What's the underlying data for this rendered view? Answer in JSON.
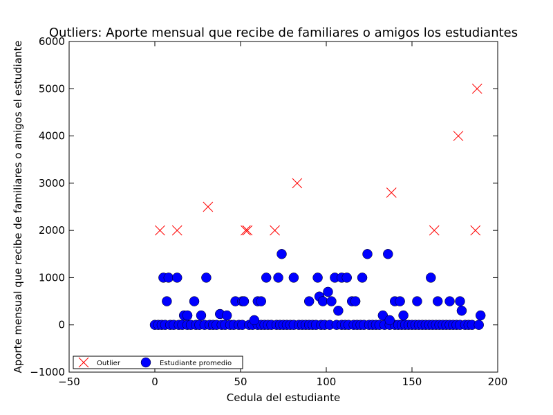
{
  "chart_data": {
    "type": "scatter",
    "title": "Outliers: Aporte mensual que recibe de familiares o amigos los estudiantes",
    "xlabel": "Cedula del estudiante",
    "ylabel": "Aporte mensual que recibe de familiares o amigos el estudiante",
    "xlim": [
      -50,
      200
    ],
    "ylim": [
      -1000,
      6000
    ],
    "xticks": [
      "−50",
      "0",
      "50",
      "100",
      "150",
      "200"
    ],
    "yticks": [
      "−1000",
      "0",
      "1000",
      "2000",
      "3000",
      "4000",
      "5000",
      "6000"
    ],
    "xtick_values": [
      -50,
      0,
      50,
      100,
      150,
      200
    ],
    "ytick_values": [
      -1000,
      0,
      1000,
      2000,
      3000,
      4000,
      5000,
      6000
    ],
    "legend_position": "lower-left",
    "series": [
      {
        "name": "Outlier",
        "marker": "x",
        "color": "#ff0000",
        "points": [
          [
            3,
            2000
          ],
          [
            13,
            2000
          ],
          [
            31,
            2500
          ],
          [
            53,
            2000
          ],
          [
            54,
            2000
          ],
          [
            70,
            2000
          ],
          [
            83,
            3000
          ],
          [
            138,
            2800
          ],
          [
            163,
            2000
          ],
          [
            177,
            4000
          ],
          [
            187,
            2000
          ],
          [
            188,
            5000
          ]
        ]
      },
      {
        "name": "Estudiante promedio",
        "marker": "o",
        "color": "#0000ff",
        "points": [
          [
            0,
            0
          ],
          [
            2,
            0
          ],
          [
            4,
            0
          ],
          [
            6,
            0
          ],
          [
            9,
            0
          ],
          [
            11,
            0
          ],
          [
            14,
            0
          ],
          [
            16,
            0
          ],
          [
            19,
            0
          ],
          [
            21,
            0
          ],
          [
            24,
            0
          ],
          [
            26,
            0
          ],
          [
            29,
            0
          ],
          [
            32,
            0
          ],
          [
            34,
            0
          ],
          [
            36,
            0
          ],
          [
            39,
            0
          ],
          [
            41,
            0
          ],
          [
            44,
            0
          ],
          [
            46,
            0
          ],
          [
            49,
            0
          ],
          [
            51,
            0
          ],
          [
            55,
            0
          ],
          [
            57,
            0
          ],
          [
            60,
            0
          ],
          [
            62,
            0
          ],
          [
            64,
            0
          ],
          [
            66,
            0
          ],
          [
            68,
            0
          ],
          [
            71,
            0
          ],
          [
            73,
            0
          ],
          [
            75,
            0
          ],
          [
            77,
            0
          ],
          [
            79,
            0
          ],
          [
            81,
            0
          ],
          [
            84,
            0
          ],
          [
            86,
            0
          ],
          [
            88,
            0
          ],
          [
            90,
            0
          ],
          [
            92,
            0
          ],
          [
            94,
            0
          ],
          [
            97,
            0
          ],
          [
            99,
            0
          ],
          [
            102,
            0
          ],
          [
            106,
            0
          ],
          [
            109,
            0
          ],
          [
            111,
            0
          ],
          [
            113,
            0
          ],
          [
            116,
            0
          ],
          [
            118,
            0
          ],
          [
            120,
            0
          ],
          [
            122,
            0
          ],
          [
            125,
            0
          ],
          [
            127,
            0
          ],
          [
            129,
            0
          ],
          [
            131,
            0
          ],
          [
            134,
            0
          ],
          [
            137,
            0
          ],
          [
            140,
            0
          ],
          [
            142,
            0
          ],
          [
            144,
            0
          ],
          [
            146,
            0
          ],
          [
            148,
            0
          ],
          [
            150,
            0
          ],
          [
            152,
            0
          ],
          [
            154,
            0
          ],
          [
            156,
            0
          ],
          [
            158,
            0
          ],
          [
            160,
            0
          ],
          [
            162,
            0
          ],
          [
            164,
            0
          ],
          [
            166,
            0
          ],
          [
            168,
            0
          ],
          [
            170,
            0
          ],
          [
            172,
            0
          ],
          [
            174,
            0
          ],
          [
            176,
            0
          ],
          [
            178,
            0
          ],
          [
            181,
            0
          ],
          [
            183,
            0
          ],
          [
            185,
            0
          ],
          [
            189,
            0
          ],
          [
            5,
            1000
          ],
          [
            7,
            500
          ],
          [
            8,
            1000
          ],
          [
            13,
            1000
          ],
          [
            17,
            200
          ],
          [
            19,
            200
          ],
          [
            23,
            500
          ],
          [
            27,
            200
          ],
          [
            30,
            1000
          ],
          [
            38,
            230
          ],
          [
            42,
            200
          ],
          [
            47,
            500
          ],
          [
            51,
            500
          ],
          [
            52,
            500
          ],
          [
            58,
            100
          ],
          [
            60,
            500
          ],
          [
            62,
            500
          ],
          [
            65,
            1000
          ],
          [
            72,
            1000
          ],
          [
            74,
            1500
          ],
          [
            81,
            1000
          ],
          [
            90,
            500
          ],
          [
            95,
            1000
          ],
          [
            96,
            600
          ],
          [
            98,
            500
          ],
          [
            101,
            700
          ],
          [
            103,
            500
          ],
          [
            105,
            1000
          ],
          [
            107,
            300
          ],
          [
            109,
            1000
          ],
          [
            112,
            1000
          ],
          [
            115,
            500
          ],
          [
            117,
            500
          ],
          [
            121,
            1000
          ],
          [
            124,
            1500
          ],
          [
            133,
            200
          ],
          [
            136,
            1500
          ],
          [
            137,
            100
          ],
          [
            140,
            500
          ],
          [
            143,
            500
          ],
          [
            145,
            200
          ],
          [
            153,
            500
          ],
          [
            161,
            1000
          ],
          [
            165,
            500
          ],
          [
            172,
            500
          ],
          [
            178,
            500
          ],
          [
            179,
            300
          ],
          [
            190,
            200
          ]
        ]
      }
    ]
  }
}
